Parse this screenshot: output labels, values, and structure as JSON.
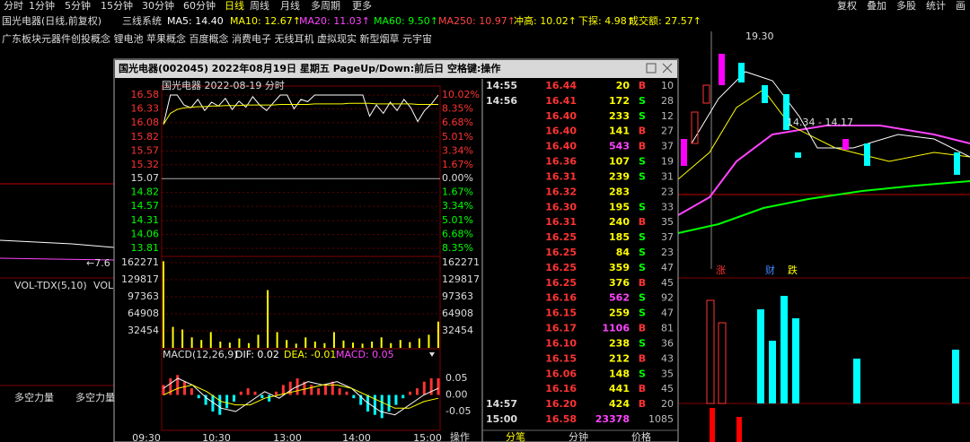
{
  "toolbar": {
    "periods": [
      "分时",
      "1分钟",
      "5分钟",
      "15分钟",
      "30分钟",
      "60分钟",
      "日线",
      "周线",
      "月线",
      "多周期",
      "更多"
    ],
    "tools": [
      "复权",
      "叠加",
      "多股",
      "统计",
      "画"
    ]
  },
  "indicator_bar": {
    "name": "国光电器(日线,前复权)",
    "system": "三线系统",
    "items": [
      {
        "text": "MA5: 14.40",
        "color": "#ffffff"
      },
      {
        "text": "MA10: 12.67↑",
        "color": "#ffff00"
      },
      {
        "text": "MA20: 11.03↑",
        "color": "#ff44ff"
      },
      {
        "text": "MA60: 9.50↑",
        "color": "#00ff00"
      },
      {
        "text": "MA250: 10.97↑",
        "color": "#ff4444"
      },
      {
        "text": "冲高: 10.02↑",
        "color": "#ffff00"
      },
      {
        "text": "下探: 4.98↑",
        "color": "#ffff00"
      },
      {
        "text": "成交额: 27.57↑",
        "color": "#ffff00"
      }
    ]
  },
  "concepts": "广东板块元器件创投概念 锂电池 苹果概念 百度概念 消费电子 无线耳机 虚拟现实 新型烟草 元宇宙",
  "left_panel": {
    "marker": "←7.6",
    "vol_label": "VOL-TDX(5,10)",
    "vol_cut": "VOL",
    "force_labels": [
      "多空力量",
      "多空力量"
    ]
  },
  "daily": {
    "high_label": "19.30",
    "range_label": "14.34 - 14.17",
    "badges": [
      "涨",
      "财",
      "跌"
    ]
  },
  "popup": {
    "title": "国光电器(002045)  2022年08月19日 星期五  PageUp/Down:前后日 空格键:操作",
    "chart_title": "国光电器  2022-08-19 分时",
    "price_ticks": [
      16.58,
      16.33,
      16.08,
      15.82,
      15.57,
      15.32,
      15.07,
      14.82,
      14.57,
      14.31,
      14.06,
      13.81
    ],
    "pct_ticks": [
      "10.02%",
      "8.35%",
      "6.68%",
      "5.01%",
      "3.34%",
      "1.67%",
      "0.00%",
      "1.67%",
      "3.34%",
      "5.01%",
      "6.68%",
      "8.35%"
    ],
    "vol_ticks": [
      162271,
      129817,
      97363,
      64908,
      32454
    ],
    "macd_header": {
      "name": "MACD(12,26,9)",
      "dif": "DIF: 0.02",
      "dea": "DEA: -0.01",
      "macd": "MACD: 0.05"
    },
    "macd_ticks": [
      "0.05",
      "0.00",
      "-0.05"
    ],
    "times": [
      "09:30",
      "10:30",
      "13:00",
      "14:00",
      "15:00"
    ],
    "price": [
      16.05,
      16.58,
      16.58,
      16.4,
      16.35,
      16.5,
      16.3,
      16.45,
      16.38,
      16.52,
      16.32,
      16.47,
      16.36,
      16.55,
      16.4,
      16.3,
      16.44,
      16.58,
      16.58,
      16.33,
      16.5,
      16.46,
      16.58,
      16.58,
      16.58,
      16.58,
      16.58,
      16.58,
      16.58,
      16.58,
      16.2,
      16.4,
      16.25,
      16.45,
      16.3,
      16.5,
      16.35,
      16.1,
      16.3,
      16.42,
      16.58
    ],
    "avg": [
      16.05,
      16.25,
      16.32,
      16.35,
      16.36,
      16.37,
      16.37,
      16.38,
      16.38,
      16.39,
      16.39,
      16.39,
      16.4,
      16.4,
      16.4,
      16.4,
      16.4,
      16.41,
      16.41,
      16.41,
      16.41,
      16.41,
      16.42,
      16.42,
      16.42,
      16.42,
      16.42,
      16.43,
      16.43,
      16.43,
      16.43,
      16.42,
      16.42,
      16.42,
      16.42,
      16.42,
      16.42,
      16.41,
      16.41,
      16.41,
      16.41
    ],
    "volume": [
      165000,
      40000,
      35000,
      20000,
      15000,
      30000,
      12000,
      10000,
      18000,
      9000,
      25000,
      110000,
      30000,
      15000,
      8000,
      20000,
      12000,
      9000,
      30000,
      14000,
      10000,
      8000,
      12000,
      20000,
      9000,
      15000,
      11000,
      18000,
      25000,
      50000
    ],
    "macd": [
      0.03,
      0.05,
      0.06,
      0.04,
      0.02,
      -0.01,
      -0.03,
      -0.05,
      -0.06,
      -0.04,
      -0.02,
      0.01,
      0.02,
      0.01,
      -0.01,
      -0.02,
      0.01,
      0.03,
      0.04,
      0.05,
      0.04,
      0.03,
      0.02,
      0.03,
      0.04,
      0.02,
      0.01,
      -0.01,
      -0.03,
      -0.05,
      -0.06,
      -0.07,
      -0.05,
      -0.03,
      -0.01,
      0.01,
      0.02,
      0.04,
      0.05,
      0.05
    ],
    "dif": [
      0.02,
      0.05,
      0.03,
      -0.01,
      -0.04,
      -0.05,
      -0.02,
      0.01,
      -0.01,
      0.02,
      0.04,
      0.03,
      0.04,
      0.02,
      -0.02,
      -0.05,
      -0.06,
      -0.03,
      0.0,
      0.02
    ],
    "dea": [
      0.0,
      0.02,
      0.03,
      0.01,
      -0.02,
      -0.03,
      -0.03,
      -0.01,
      0.0,
      0.01,
      0.02,
      0.03,
      0.03,
      0.02,
      0.0,
      -0.02,
      -0.04,
      -0.04,
      -0.02,
      -0.01
    ],
    "trades": [
      {
        "time": "14:55",
        "price": "16.44",
        "vol": "20",
        "side": "B",
        "count": "10"
      },
      {
        "time": "14:56",
        "price": "16.41",
        "vol": "172",
        "side": "S",
        "count": "28"
      },
      {
        "time": null,
        "price": "16.40",
        "vol": "233",
        "side": "S",
        "count": "12"
      },
      {
        "time": null,
        "price": "16.40",
        "vol": "141",
        "side": "B",
        "count": "27"
      },
      {
        "time": null,
        "price": "16.40",
        "vol": "543",
        "side": "B",
        "count": "37"
      },
      {
        "time": null,
        "price": "16.36",
        "vol": "107",
        "side": "S",
        "count": "19"
      },
      {
        "time": null,
        "price": "16.31",
        "vol": "239",
        "side": "S",
        "count": "31"
      },
      {
        "time": null,
        "price": "16.32",
        "vol": "283",
        "side": null,
        "count": "23"
      },
      {
        "time": null,
        "price": "16.30",
        "vol": "195",
        "side": "S",
        "count": "33"
      },
      {
        "time": null,
        "price": "16.31",
        "vol": "240",
        "side": "B",
        "count": "35"
      },
      {
        "time": null,
        "price": "16.25",
        "vol": "185",
        "side": "S",
        "count": "37"
      },
      {
        "time": null,
        "price": "16.25",
        "vol": "84",
        "side": "S",
        "count": "23"
      },
      {
        "time": null,
        "price": "16.25",
        "vol": "359",
        "side": "S",
        "count": "47"
      },
      {
        "time": null,
        "price": "16.25",
        "vol": "376",
        "side": "B",
        "count": "45"
      },
      {
        "time": null,
        "price": "16.16",
        "vol": "562",
        "side": "S",
        "count": "92"
      },
      {
        "time": null,
        "price": "16.15",
        "vol": "259",
        "side": "S",
        "count": "47"
      },
      {
        "time": null,
        "price": "16.17",
        "vol": "1106",
        "side": "B",
        "count": "81"
      },
      {
        "time": null,
        "price": "16.10",
        "vol": "238",
        "side": "S",
        "count": "36"
      },
      {
        "time": null,
        "price": "16.15",
        "vol": "212",
        "side": "B",
        "count": "43"
      },
      {
        "time": null,
        "price": "16.06",
        "vol": "148",
        "side": "S",
        "count": "35"
      },
      {
        "time": null,
        "price": "16.16",
        "vol": "441",
        "side": "B",
        "count": "45"
      },
      {
        "time": "14:57",
        "price": "16.20",
        "vol": "424",
        "side": "B",
        "count": "20"
      },
      {
        "time": "15:00",
        "price": "16.58",
        "vol": "23378",
        "side": null,
        "count": "1085"
      }
    ],
    "footer": [
      "操作",
      "分笔",
      "分钟",
      "价格"
    ]
  }
}
